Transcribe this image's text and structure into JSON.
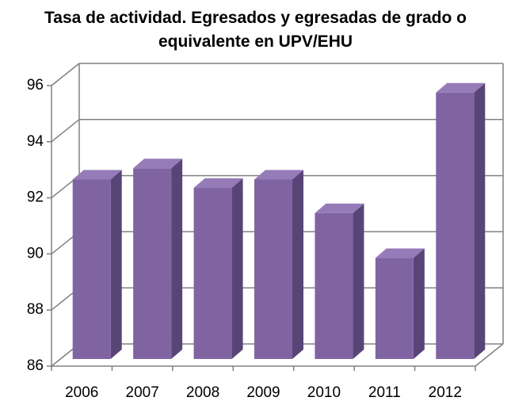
{
  "chart_data": {
    "type": "bar3d",
    "title": "Tasa de actividad. Egresados y egresadas de grado o equivalente en UPV/EHU",
    "categories": [
      "2006",
      "2007",
      "2008",
      "2009",
      "2010",
      "2011",
      "2012"
    ],
    "values": [
      92.4,
      92.8,
      92.1,
      92.4,
      91.2,
      89.6,
      95.5
    ],
    "color": "#8064a2",
    "ylim": [
      86,
      96
    ],
    "yticks": [
      86,
      88,
      90,
      92,
      94,
      96
    ],
    "grid": true
  }
}
